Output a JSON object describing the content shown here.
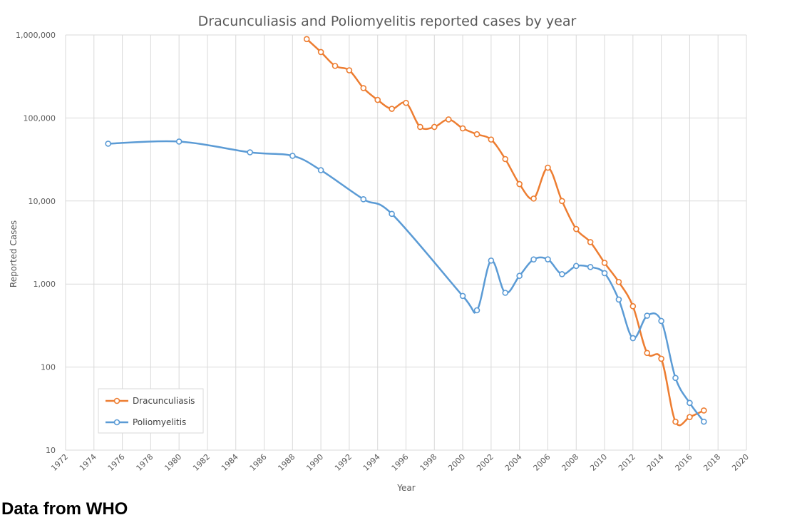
{
  "caption": "Data from WHO",
  "chart_data": {
    "type": "line",
    "title": "Dracunculiasis and Poliomyelitis reported cases by year",
    "xlabel": "Year",
    "ylabel": "Reported Cases",
    "xlim": [
      1972,
      2020
    ],
    "x_ticks": [
      1972,
      1974,
      1976,
      1978,
      1980,
      1982,
      1984,
      1986,
      1988,
      1990,
      1992,
      1994,
      1996,
      1998,
      2000,
      2002,
      2004,
      2006,
      2008,
      2010,
      2012,
      2014,
      2016,
      2018,
      2020
    ],
    "y_scale": "log",
    "ylim": [
      10,
      1000000
    ],
    "y_ticks": [
      10,
      100,
      1000,
      10000,
      100000,
      1000000
    ],
    "y_tick_labels": [
      "10",
      "100",
      "1,000",
      "10,000",
      "100,000",
      "1,000,000"
    ],
    "grid": true,
    "legend": "bottom-left",
    "series": [
      {
        "name": "Dracunculiasis",
        "color": "#ED7D31",
        "x": [
          1989,
          1990,
          1991,
          1992,
          1993,
          1994,
          1995,
          1996,
          1997,
          1998,
          1999,
          2000,
          2001,
          2002,
          2003,
          2004,
          2005,
          2006,
          2007,
          2008,
          2009,
          2010,
          2011,
          2012,
          2013,
          2014,
          2015,
          2016,
          2017
        ],
        "y": [
          892000,
          623000,
          424000,
          375000,
          229000,
          165000,
          129000,
          152000,
          78000,
          78000,
          96000,
          75000,
          63700,
          55000,
          32000,
          16000,
          10700,
          25200,
          10000,
          4600,
          3200,
          1800,
          1060,
          540,
          148,
          126,
          22,
          25,
          30
        ]
      },
      {
        "name": "Poliomyelitis",
        "color": "#5B9BD5",
        "x": [
          1975,
          1980,
          1985,
          1988,
          1990,
          1993,
          1995,
          2000,
          2001,
          2002,
          2003,
          2004,
          2005,
          2006,
          2007,
          2008,
          2009,
          2010,
          2011,
          2012,
          2013,
          2014,
          2015,
          2016,
          2017
        ],
        "y": [
          49000,
          52000,
          38600,
          35000,
          23500,
          10500,
          7000,
          719,
          483,
          1918,
          784,
          1255,
          1979,
          1985,
          1315,
          1651,
          1604,
          1352,
          650,
          223,
          416,
          359,
          74,
          37,
          22
        ]
      }
    ]
  }
}
